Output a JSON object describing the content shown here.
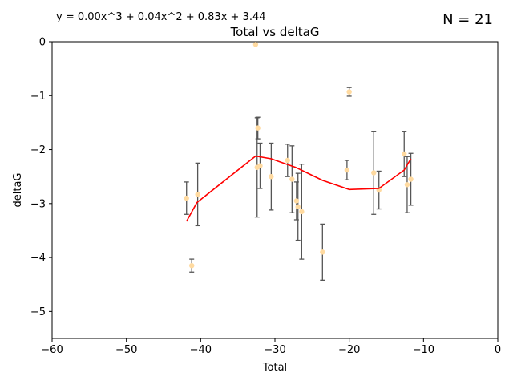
{
  "chart_data": {
    "type": "scatter",
    "title": "Total vs deltaG",
    "xlabel": "Total",
    "ylabel": "deltaG",
    "equation": "y = 0.00x^3 + 0.04x^2 + 0.83x + 3.44",
    "n_label": "N = 21",
    "xlim": [
      -60,
      0
    ],
    "ylim": [
      -5.5,
      0
    ],
    "xticks": [
      -60,
      -50,
      -40,
      -30,
      -20,
      -10,
      0
    ],
    "yticks": [
      0,
      -1,
      -2,
      -3,
      -4,
      -5
    ],
    "grid": false,
    "colors": {
      "points": "#ffdaa0",
      "errorbars": "#555555",
      "fit": "#ff0000"
    },
    "points": [
      {
        "x": -41.9,
        "y": -2.9,
        "err": 0.3
      },
      {
        "x": -41.2,
        "y": -4.15,
        "err": 0.12
      },
      {
        "x": -40.4,
        "y": -2.83,
        "err": 0.58
      },
      {
        "x": -32.6,
        "y": -0.05,
        "err": 0.0
      },
      {
        "x": -32.4,
        "y": -2.33,
        "err": 0.92
      },
      {
        "x": -32.3,
        "y": -1.6,
        "err": 0.2
      },
      {
        "x": -32.0,
        "y": -2.3,
        "err": 0.42
      },
      {
        "x": -30.5,
        "y": -2.5,
        "err": 0.62
      },
      {
        "x": -28.3,
        "y": -2.2,
        "err": 0.3
      },
      {
        "x": -27.7,
        "y": -2.55,
        "err": 0.62
      },
      {
        "x": -27.1,
        "y": -2.95,
        "err": 0.35
      },
      {
        "x": -26.9,
        "y": -3.06,
        "err": 0.62
      },
      {
        "x": -26.4,
        "y": -3.15,
        "err": 0.88
      },
      {
        "x": -23.6,
        "y": -3.9,
        "err": 0.52
      },
      {
        "x": -20.3,
        "y": -2.38,
        "err": 0.18
      },
      {
        "x": -20.0,
        "y": -0.93,
        "err": 0.08
      },
      {
        "x": -16.7,
        "y": -2.43,
        "err": 0.77
      },
      {
        "x": -16.0,
        "y": -2.75,
        "err": 0.35
      },
      {
        "x": -12.6,
        "y": -2.08,
        "err": 0.42
      },
      {
        "x": -12.2,
        "y": -2.65,
        "err": 0.52
      },
      {
        "x": -11.7,
        "y": -2.55,
        "err": 0.48
      }
    ],
    "fit_line": [
      {
        "x": -41.9,
        "y": -3.33
      },
      {
        "x": -40.5,
        "y": -2.98
      },
      {
        "x": -32.6,
        "y": -2.12
      },
      {
        "x": -30.5,
        "y": -2.17
      },
      {
        "x": -27.2,
        "y": -2.33
      },
      {
        "x": -23.6,
        "y": -2.57
      },
      {
        "x": -20.0,
        "y": -2.74
      },
      {
        "x": -16.0,
        "y": -2.72
      },
      {
        "x": -12.6,
        "y": -2.38
      },
      {
        "x": -11.7,
        "y": -2.17
      }
    ]
  }
}
